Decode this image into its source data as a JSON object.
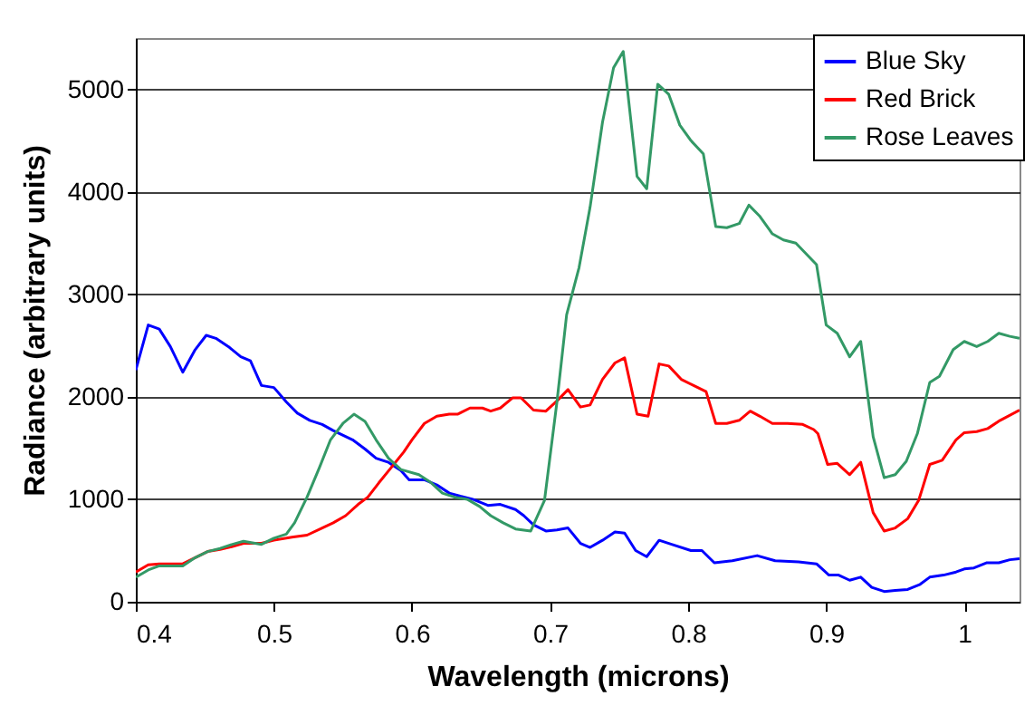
{
  "chart_data": {
    "type": "line",
    "xlabel": "Wavelength (microns)",
    "ylabel": "Radiance (arbitrary units)",
    "xlim": [
      0.4,
      1.04
    ],
    "xticks": [
      0.4,
      0.5,
      0.6,
      0.7,
      0.8,
      0.9,
      1
    ],
    "ylim": [
      0,
      5500
    ],
    "yticks": [
      0,
      1000,
      2000,
      3000,
      4000,
      5000
    ],
    "grid": "y",
    "legend": "top right",
    "series": [
      {
        "name": "Blue Sky",
        "color": "#0000ff",
        "x": [
          0.4,
          0.409,
          0.417,
          0.425,
          0.434,
          0.443,
          0.451,
          0.458,
          0.467,
          0.476,
          0.483,
          0.491,
          0.5,
          0.509,
          0.517,
          0.526,
          0.535,
          0.543,
          0.557,
          0.566,
          0.574,
          0.583,
          0.592,
          0.598,
          0.609,
          0.618,
          0.627,
          0.635,
          0.644,
          0.655,
          0.664,
          0.675,
          0.681,
          0.688,
          0.697,
          0.705,
          0.713,
          0.722,
          0.729,
          0.738,
          0.747,
          0.754,
          0.762,
          0.77,
          0.779,
          0.788,
          0.802,
          0.81,
          0.819,
          0.832,
          0.85,
          0.863,
          0.88,
          0.893,
          0.902,
          0.909,
          0.917,
          0.925,
          0.933,
          0.942,
          0.95,
          0.959,
          0.968,
          0.975,
          0.985,
          0.994,
          1.0,
          1.007,
          1.016,
          1.025,
          1.033,
          1.04
        ],
        "values": [
          2260,
          2700,
          2660,
          2490,
          2240,
          2460,
          2600,
          2570,
          2490,
          2390,
          2350,
          2110,
          2090,
          1950,
          1840,
          1770,
          1730,
          1670,
          1580,
          1490,
          1400,
          1360,
          1280,
          1190,
          1190,
          1140,
          1060,
          1030,
          1000,
          940,
          950,
          900,
          840,
          750,
          690,
          700,
          720,
          570,
          530,
          600,
          680,
          670,
          500,
          440,
          600,
          560,
          500,
          500,
          380,
          400,
          450,
          400,
          390,
          370,
          260,
          260,
          210,
          240,
          140,
          100,
          110,
          120,
          170,
          240,
          260,
          290,
          320,
          330,
          380,
          380,
          410,
          420
        ]
      },
      {
        "name": "Red Brick",
        "color": "#ff0000",
        "x": [
          0.4,
          0.409,
          0.417,
          0.434,
          0.443,
          0.452,
          0.461,
          0.47,
          0.478,
          0.491,
          0.5,
          0.513,
          0.524,
          0.535,
          0.543,
          0.552,
          0.561,
          0.568,
          0.576,
          0.585,
          0.594,
          0.6,
          0.609,
          0.618,
          0.627,
          0.633,
          0.642,
          0.651,
          0.657,
          0.664,
          0.673,
          0.679,
          0.688,
          0.697,
          0.705,
          0.713,
          0.722,
          0.729,
          0.738,
          0.747,
          0.754,
          0.763,
          0.771,
          0.779,
          0.786,
          0.795,
          0.804,
          0.813,
          0.82,
          0.828,
          0.837,
          0.845,
          0.852,
          0.861,
          0.872,
          0.883,
          0.891,
          0.894,
          0.901,
          0.908,
          0.917,
          0.925,
          0.934,
          0.942,
          0.95,
          0.959,
          0.967,
          0.975,
          0.984,
          0.994,
          1.0,
          1.009,
          1.017,
          1.026,
          1.04
        ],
        "values": [
          290,
          360,
          370,
          370,
          430,
          490,
          510,
          540,
          570,
          570,
          600,
          630,
          650,
          720,
          770,
          840,
          950,
          1020,
          1160,
          1310,
          1460,
          1580,
          1740,
          1810,
          1830,
          1830,
          1890,
          1890,
          1860,
          1890,
          1990,
          1990,
          1870,
          1860,
          1960,
          2070,
          1900,
          1920,
          2170,
          2330,
          2380,
          1830,
          1810,
          2320,
          2300,
          2170,
          2110,
          2050,
          1740,
          1740,
          1770,
          1860,
          1810,
          1740,
          1740,
          1730,
          1680,
          1640,
          1340,
          1350,
          1240,
          1360,
          870,
          690,
          720,
          810,
          990,
          1340,
          1380,
          1580,
          1650,
          1660,
          1690,
          1770,
          1870
        ]
      },
      {
        "name": "Rose Leaves",
        "color": "#339966",
        "x": [
          0.4,
          0.409,
          0.417,
          0.434,
          0.443,
          0.452,
          0.461,
          0.47,
          0.478,
          0.491,
          0.5,
          0.509,
          0.515,
          0.524,
          0.533,
          0.541,
          0.55,
          0.558,
          0.566,
          0.574,
          0.583,
          0.592,
          0.605,
          0.614,
          0.622,
          0.631,
          0.64,
          0.649,
          0.657,
          0.666,
          0.675,
          0.686,
          0.696,
          0.705,
          0.712,
          0.721,
          0.729,
          0.738,
          0.746,
          0.753,
          0.763,
          0.77,
          0.778,
          0.786,
          0.794,
          0.802,
          0.811,
          0.82,
          0.828,
          0.837,
          0.844,
          0.852,
          0.861,
          0.869,
          0.878,
          0.893,
          0.9,
          0.908,
          0.917,
          0.925,
          0.934,
          0.942,
          0.95,
          0.958,
          0.966,
          0.975,
          0.982,
          0.992,
          1.0,
          1.009,
          1.017,
          1.025,
          1.033,
          1.04
        ],
        "values": [
          240,
          310,
          350,
          350,
          430,
          490,
          520,
          560,
          590,
          560,
          620,
          660,
          770,
          1020,
          1310,
          1580,
          1740,
          1830,
          1760,
          1580,
          1400,
          1290,
          1240,
          1160,
          1060,
          1020,
          1000,
          930,
          840,
          770,
          710,
          690,
          990,
          1950,
          2800,
          3260,
          3850,
          4680,
          5210,
          5370,
          4150,
          4030,
          5050,
          4950,
          4650,
          4500,
          4370,
          3660,
          3650,
          3690,
          3870,
          3760,
          3590,
          3530,
          3500,
          3290,
          2700,
          2620,
          2390,
          2540,
          1610,
          1210,
          1240,
          1370,
          1640,
          2140,
          2200,
          2460,
          2540,
          2490,
          2540,
          2620,
          2590,
          2570
        ]
      }
    ]
  }
}
